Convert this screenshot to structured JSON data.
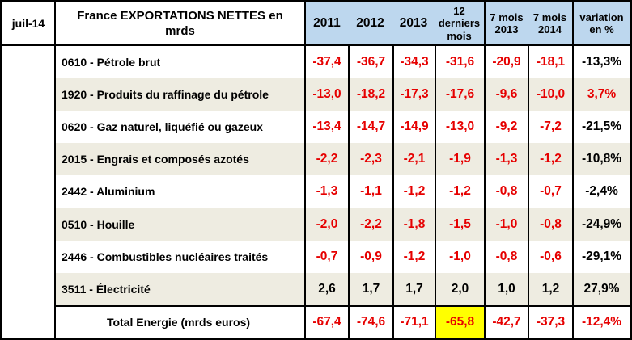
{
  "app": {
    "date_label": "juil-14"
  },
  "colors": {
    "header_bg": "#bdd7ee",
    "row_bg": "#ffffff",
    "row_alt": "#eeece1",
    "value_red": "#e60000",
    "text_black": "#000000",
    "highlight": "#ffff00",
    "border": "#000000"
  },
  "table": {
    "title": "France EXPORTATIONS NETTES en\nmrds",
    "columns": {
      "y2011": "2011",
      "y2012": "2012",
      "y2013": "2013",
      "last12": "12\nderniers\nmois",
      "m7_2013": "7 mois\n2013",
      "m7_2014": "7 mois\n2014",
      "variation": "variation\nen %"
    },
    "rows": [
      {
        "label": "0610 - Pétrole brut",
        "values": [
          "-37,4",
          "-36,7",
          "-34,3",
          "-31,6",
          "-20,9",
          "-18,1"
        ],
        "variation": "-13,3%",
        "bg": "#ffffff",
        "values_color": "#e60000",
        "variation_color": "#000000"
      },
      {
        "label": "1920 - Produits du raffinage du pétrole",
        "values": [
          "-13,0",
          "-18,2",
          "-17,3",
          "-17,6",
          "-9,6",
          "-10,0"
        ],
        "variation": "3,7%",
        "bg": "#eeece1",
        "values_color": "#e60000",
        "variation_color": "#e60000"
      },
      {
        "label": "0620 - Gaz naturel, liquéfié ou gazeux",
        "values": [
          "-13,4",
          "-14,7",
          "-14,9",
          "-13,0",
          "-9,2",
          "-7,2"
        ],
        "variation": "-21,5%",
        "bg": "#ffffff",
        "values_color": "#e60000",
        "variation_color": "#000000"
      },
      {
        "label": "2015 - Engrais et composés azotés",
        "values": [
          "-2,2",
          "-2,3",
          "-2,1",
          "-1,9",
          "-1,3",
          "-1,2"
        ],
        "variation": "-10,8%",
        "bg": "#eeece1",
        "values_color": "#e60000",
        "variation_color": "#000000"
      },
      {
        "label": "2442 - Aluminium",
        "values": [
          "-1,3",
          "-1,1",
          "-1,2",
          "-1,2",
          "-0,8",
          "-0,7"
        ],
        "variation": "-2,4%",
        "bg": "#ffffff",
        "values_color": "#e60000",
        "variation_color": "#000000"
      },
      {
        "label": "0510 - Houille",
        "values": [
          "-2,0",
          "-2,2",
          "-1,8",
          "-1,5",
          "-1,0",
          "-0,8"
        ],
        "variation": "-24,9%",
        "bg": "#eeece1",
        "values_color": "#e60000",
        "variation_color": "#000000"
      },
      {
        "label": "2446 - Combustibles nucléaires traités",
        "values": [
          "-0,7",
          "-0,9",
          "-1,2",
          "-1,0",
          "-0,8",
          "-0,6"
        ],
        "variation": "-29,1%",
        "bg": "#ffffff",
        "values_color": "#e60000",
        "variation_color": "#000000"
      },
      {
        "label": "3511 - Électricité",
        "values": [
          "2,6",
          "1,7",
          "1,7",
          "2,0",
          "1,0",
          "1,2"
        ],
        "variation": "27,9%",
        "bg": "#eeece1",
        "values_color": "#000000",
        "variation_color": "#000000"
      },
      {
        "label": "Total Energie (mrds euros)",
        "values": [
          "-67,4",
          "-74,6",
          "-71,1",
          "-65,8",
          "-42,7",
          "-37,3"
        ],
        "variation": "-12,4%",
        "bg": "#ffffff",
        "values_color": "#e60000",
        "variation_color": "#e60000",
        "highlight": 3
      }
    ]
  },
  "chart_data": {
    "type": "table",
    "title": "France EXPORTATIONS NETTES en mrds (juil-14)",
    "columns": [
      "2011",
      "2012",
      "2013",
      "12 derniers mois",
      "7 mois 2013",
      "7 mois 2014",
      "variation en %"
    ],
    "rows": [
      {
        "label": "0610 - Pétrole brut",
        "values": [
          -37.4,
          -36.7,
          -34.3,
          -31.6,
          -20.9,
          -18.1
        ],
        "variation_pct": -13.3
      },
      {
        "label": "1920 - Produits du raffinage du pétrole",
        "values": [
          -13.0,
          -18.2,
          -17.3,
          -17.6,
          -9.6,
          -10.0
        ],
        "variation_pct": 3.7
      },
      {
        "label": "0620 - Gaz naturel, liquéfié ou gazeux",
        "values": [
          -13.4,
          -14.7,
          -14.9,
          -13.0,
          -9.2,
          -7.2
        ],
        "variation_pct": -21.5
      },
      {
        "label": "2015 - Engrais et composés azotés",
        "values": [
          -2.2,
          -2.3,
          -2.1,
          -1.9,
          -1.3,
          -1.2
        ],
        "variation_pct": -10.8
      },
      {
        "label": "2442 - Aluminium",
        "values": [
          -1.3,
          -1.1,
          -1.2,
          -1.2,
          -0.8,
          -0.7
        ],
        "variation_pct": -2.4
      },
      {
        "label": "0510 - Houille",
        "values": [
          -2.0,
          -2.2,
          -1.8,
          -1.5,
          -1.0,
          -0.8
        ],
        "variation_pct": -24.9
      },
      {
        "label": "2446 - Combustibles nucléaires traités",
        "values": [
          -0.7,
          -0.9,
          -1.2,
          -1.0,
          -0.8,
          -0.6
        ],
        "variation_pct": -29.1
      },
      {
        "label": "3511 - Électricité",
        "values": [
          2.6,
          1.7,
          1.7,
          2.0,
          1.0,
          1.2
        ],
        "variation_pct": 27.9
      },
      {
        "label": "Total Energie (mrds euros)",
        "values": [
          -67.4,
          -74.6,
          -71.1,
          -65.8,
          -42.7,
          -37.3
        ],
        "variation_pct": -12.4,
        "highlighted_column": "12 derniers mois"
      }
    ]
  }
}
